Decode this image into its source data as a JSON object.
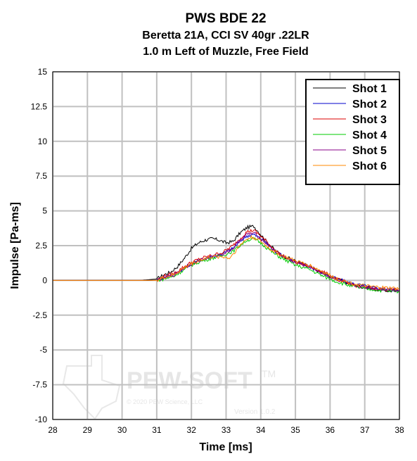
{
  "chart_data": {
    "type": "line",
    "title": "PWS BDE 22",
    "subtitle_lines": [
      "Beretta 21A, CCI SV 40gr .22LR",
      "1.0 m Left of Muzzle, Free Field"
    ],
    "xlabel": "Time [ms]",
    "ylabel": "Impulse [Pa-ms]",
    "xlim": [
      28,
      38
    ],
    "ylim": [
      -10,
      15
    ],
    "xticks": [
      28,
      29,
      30,
      31,
      32,
      33,
      34,
      35,
      36,
      37,
      38
    ],
    "yticks": [
      15,
      12.5,
      10,
      7.5,
      5,
      2.5,
      0,
      -2.5,
      -5,
      -7.5,
      -10
    ],
    "xtick_labels": [
      "28",
      "29",
      "30",
      "31",
      "32",
      "33",
      "34",
      "35",
      "36",
      "37",
      "38"
    ],
    "ytick_labels": [
      "15",
      "12.5",
      "10",
      "7.5",
      "5",
      "2.5",
      "0",
      "-2.5",
      "-5",
      "-7.5",
      "-10"
    ],
    "grid": true,
    "legend_position": "top-right",
    "series": [
      {
        "name": "Shot 1",
        "color": "#000000",
        "x": [
          28,
          30.5,
          31.0,
          31.2,
          31.4,
          31.6,
          31.8,
          32.0,
          32.2,
          32.4,
          32.6,
          32.8,
          33.0,
          33.2,
          33.4,
          33.6,
          33.8,
          34.0,
          34.2,
          34.4,
          34.6,
          35.0,
          35.4,
          35.8,
          36.2,
          36.6,
          37.0,
          37.4,
          38.0
        ],
        "y": [
          0,
          0,
          0.1,
          0.4,
          0.6,
          1.0,
          1.6,
          2.3,
          2.7,
          2.9,
          3.0,
          2.9,
          2.7,
          2.8,
          3.4,
          3.8,
          3.9,
          3.3,
          2.7,
          2.2,
          1.8,
          1.4,
          1.0,
          0.5,
          0.1,
          -0.3,
          -0.5,
          -0.7,
          -0.8
        ]
      },
      {
        "name": "Shot 2",
        "color": "#0000cc",
        "x": [
          28,
          30.5,
          31.0,
          31.2,
          31.5,
          31.8,
          32.0,
          32.3,
          32.6,
          32.9,
          33.2,
          33.4,
          33.6,
          33.8,
          34.0,
          34.2,
          34.4,
          34.6,
          35.0,
          35.4,
          35.8,
          36.2,
          36.6,
          37.0,
          37.4,
          38.0
        ],
        "y": [
          0,
          0,
          0,
          0.2,
          0.4,
          0.9,
          1.2,
          1.5,
          1.7,
          1.9,
          2.3,
          2.8,
          3.2,
          3.3,
          3.0,
          2.6,
          2.1,
          1.8,
          1.3,
          1.0,
          0.5,
          0.1,
          -0.2,
          -0.4,
          -0.6,
          -0.7
        ]
      },
      {
        "name": "Shot 3",
        "color": "#dd0000",
        "x": [
          28,
          30.5,
          31.0,
          31.2,
          31.5,
          31.8,
          32.0,
          32.3,
          32.6,
          32.9,
          33.2,
          33.4,
          33.6,
          33.8,
          34.0,
          34.2,
          34.4,
          34.6,
          35.0,
          35.4,
          35.8,
          36.2,
          36.6,
          37.0,
          37.4,
          38.0
        ],
        "y": [
          0,
          0,
          0,
          0.3,
          0.5,
          1.0,
          1.3,
          1.6,
          1.8,
          2.0,
          2.5,
          3.0,
          3.5,
          3.6,
          3.2,
          2.7,
          2.2,
          1.8,
          1.3,
          1.0,
          0.6,
          0.1,
          -0.3,
          -0.5,
          -0.6,
          -0.7
        ]
      },
      {
        "name": "Shot 4",
        "color": "#00cc00",
        "x": [
          28,
          30.5,
          31.0,
          31.2,
          31.5,
          31.8,
          32.0,
          32.3,
          32.6,
          32.9,
          33.2,
          33.4,
          33.6,
          33.8,
          34.0,
          34.2,
          34.4,
          34.6,
          35.0,
          35.4,
          35.8,
          36.2,
          36.6,
          37.0,
          37.4,
          38.0
        ],
        "y": [
          0,
          0,
          0,
          0.1,
          0.3,
          0.8,
          1.1,
          1.4,
          1.6,
          1.8,
          2.1,
          2.5,
          2.9,
          3.0,
          2.7,
          2.3,
          1.9,
          1.6,
          1.1,
          0.8,
          0.3,
          -0.1,
          -0.4,
          -0.6,
          -0.7,
          -0.8
        ]
      },
      {
        "name": "Shot 5",
        "color": "#880088",
        "x": [
          28,
          30.5,
          31.0,
          31.2,
          31.5,
          31.8,
          32.0,
          32.3,
          32.6,
          32.9,
          33.2,
          33.4,
          33.6,
          33.8,
          34.0,
          34.2,
          34.4,
          34.6,
          35.0,
          35.4,
          35.8,
          36.2,
          36.6,
          37.0,
          37.4,
          38.0
        ],
        "y": [
          0,
          0,
          0,
          0.2,
          0.4,
          0.9,
          1.2,
          1.5,
          1.7,
          1.9,
          2.3,
          2.9,
          3.3,
          3.4,
          3.0,
          2.6,
          2.1,
          1.8,
          1.3,
          1.0,
          0.5,
          0.0,
          -0.3,
          -0.5,
          -0.6,
          -0.7
        ]
      },
      {
        "name": "Shot 6",
        "color": "#ff8800",
        "x": [
          28,
          30.5,
          31.0,
          31.2,
          31.5,
          31.8,
          32.0,
          32.3,
          32.6,
          32.9,
          33.1,
          33.3,
          33.5,
          33.7,
          33.9,
          34.1,
          34.3,
          34.6,
          35.0,
          35.4,
          35.8,
          36.2,
          36.6,
          37.0,
          37.4,
          38.0
        ],
        "y": [
          0,
          0,
          0,
          0.2,
          0.4,
          0.9,
          1.2,
          1.5,
          1.7,
          1.7,
          1.6,
          2.2,
          2.8,
          3.1,
          3.0,
          2.6,
          2.2,
          1.8,
          1.4,
          1.1,
          0.6,
          0.1,
          -0.2,
          -0.4,
          -0.5,
          -0.6
        ]
      }
    ]
  },
  "watermark": {
    "brand": "PEW-SOFT",
    "trademark": "TM",
    "copyright": "© 2020 PEW Science, LLC",
    "version": "Version 1.0.2"
  }
}
